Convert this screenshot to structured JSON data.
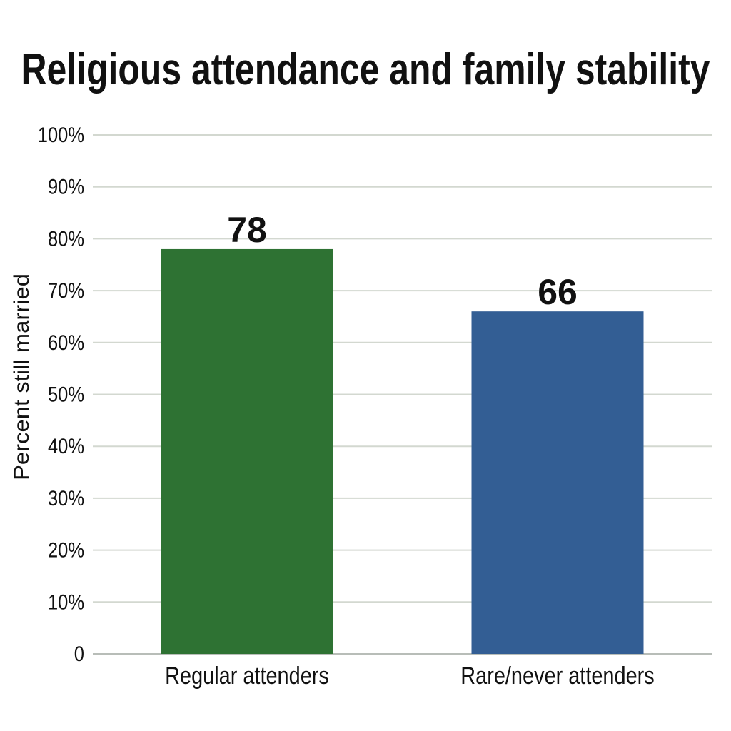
{
  "chart_data": {
    "type": "bar",
    "title": "Religious attendance and family stability",
    "xlabel": "",
    "ylabel": "Percent still married",
    "categories": [
      "Regular attenders",
      "Rare/never attenders"
    ],
    "values": [
      78,
      66
    ],
    "data_labels": [
      "78",
      "66"
    ],
    "colors": [
      "#2e7233",
      "#335e94"
    ],
    "ylim": [
      0,
      100
    ],
    "yticks": [
      0,
      10,
      20,
      30,
      40,
      50,
      60,
      70,
      80,
      90,
      100
    ],
    "ytick_labels": [
      "0",
      "10%",
      "20%",
      "30%",
      "40%",
      "50%",
      "60%",
      "70%",
      "80%",
      "90%",
      "100%"
    ],
    "grid": true,
    "legend": "none"
  }
}
